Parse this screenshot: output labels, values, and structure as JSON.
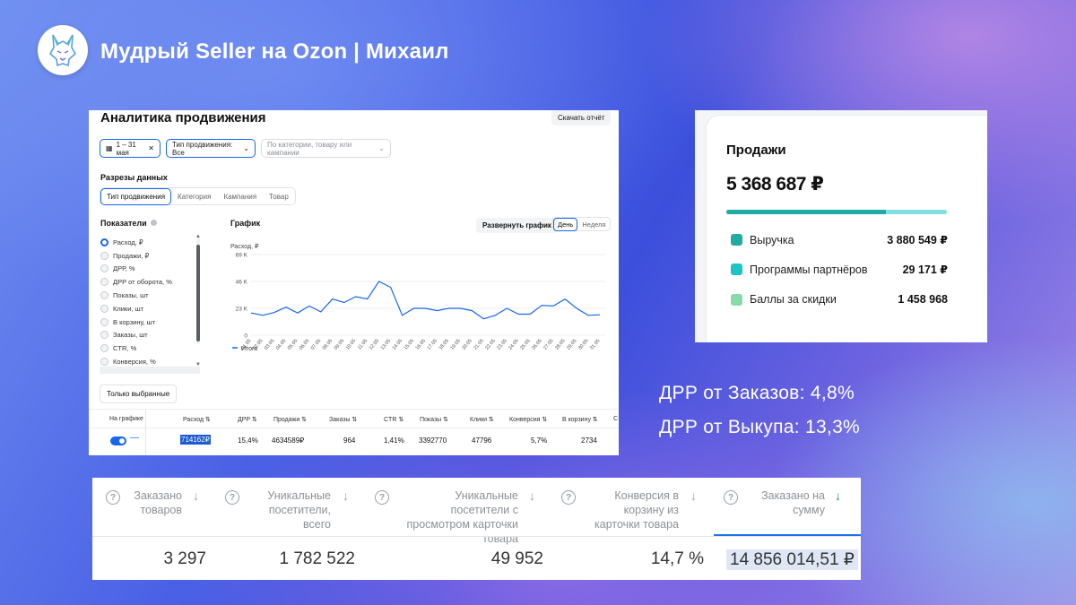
{
  "header": {
    "title": "Мудрый Seller на Ozon | Михаил"
  },
  "analytics": {
    "title": "Аналитика продвижения",
    "download_label": "Скачать отчёт",
    "filters": {
      "date": "1 – 31 мая",
      "type": "Тип продвижения: Все",
      "search_placeholder": "По категории, товару или кампании"
    },
    "slices_label": "Разрезы данных",
    "slice_tabs": [
      "Тип продвижения",
      "Категория",
      "Кампания",
      "Товар"
    ],
    "indicators_label": "Показатели",
    "indicators": [
      "Расход, ₽",
      "Продажи, ₽",
      "ДРР, %",
      "ДРР от оборота, %",
      "Показы, шт",
      "Клики, шт",
      "В корзину, шт",
      "Заказы, шт",
      "CTR, %",
      "Конверсия, %"
    ],
    "only_selected_label": "Только выбранные",
    "chart_label": "График",
    "expand_label": "Развернуть график",
    "period_tabs": [
      "День",
      "Неделя"
    ],
    "table": {
      "headers": [
        "На графике",
        "Расход ⇅",
        "ДРР ⇅",
        "Продажи ⇅",
        "Заказы ⇅",
        "CTR ⇅",
        "Показы ⇅",
        "Клики ⇅",
        "Конверсия ⇅",
        "В корзину ⇅",
        "С"
      ],
      "row": [
        "714162₽",
        "15,4%",
        "4634589₽",
        "964",
        "1,41%",
        "3392770",
        "47796",
        "5,7%",
        "2734"
      ]
    }
  },
  "chart_data": {
    "type": "line",
    "ylabel": "Расход, ₽",
    "y_ticks": [
      "69 K",
      "46 K",
      "23 K",
      "0"
    ],
    "ylim": [
      0,
      69000
    ],
    "x": [
      "01.05",
      "02.05",
      "03.05",
      "04.05",
      "05.05",
      "06.05",
      "07.05",
      "08.05",
      "09.05",
      "10.05",
      "11.05",
      "12.05",
      "13.05",
      "14.05",
      "15.05",
      "16.05",
      "17.05",
      "18.05",
      "19.05",
      "20.05",
      "21.05",
      "22.05",
      "23.05",
      "24.05",
      "25.05",
      "26.05",
      "27.05",
      "28.05",
      "29.05",
      "30.05",
      "31.05"
    ],
    "series": [
      {
        "name": "Итого",
        "color": "#1766ef",
        "values": [
          19000,
          17000,
          19500,
          24000,
          19000,
          25000,
          20000,
          31000,
          28000,
          33000,
          31000,
          46000,
          41000,
          17000,
          23000,
          23000,
          21000,
          23000,
          23000,
          21000,
          14000,
          17000,
          23000,
          18000,
          18000,
          25500,
          25000,
          31000,
          23000,
          17000,
          17500
        ]
      }
    ]
  },
  "sales": {
    "title": "Продажи",
    "total": "5 368 687 ₽",
    "progress_fraction": 0.723,
    "items": [
      {
        "label": "Выручка",
        "value": "3 880 549 ₽",
        "color": "#22aaa5"
      },
      {
        "label": "Программы партнёров",
        "value": "29 171 ₽",
        "color": "#1ec4c4"
      },
      {
        "label": "Баллы за скидки",
        "value": "1 458 968",
        "color": "#86dba8"
      }
    ]
  },
  "drr": {
    "orders": "ДРР от Заказов: 4,8%",
    "buyout": "ДРР от Выкупа: 13,3%"
  },
  "stats": {
    "columns": [
      {
        "label": "Заказано товаров",
        "value": "3 297"
      },
      {
        "label": "Уникальные посетители, всего",
        "value": "1 782 522"
      },
      {
        "label": "Уникальные посетители с просмотром карточки товара",
        "value": "49 952"
      },
      {
        "label": "Конверсия в корзину из карточки товара",
        "value": "14,7 %"
      },
      {
        "label": "Заказано на сумму",
        "value": "14 856 014,51 ₽"
      }
    ]
  }
}
